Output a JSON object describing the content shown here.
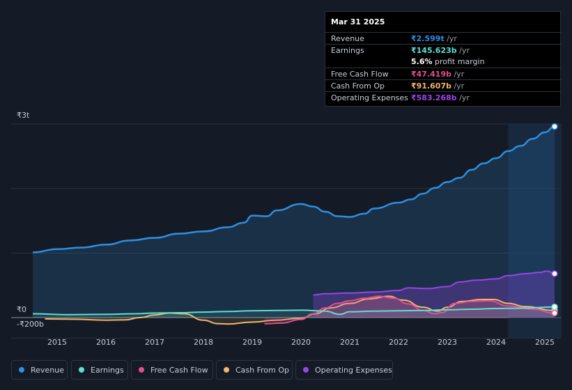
{
  "chart_data": {
    "type": "area",
    "y_axis_labels": [
      "₹3t",
      "₹0",
      "-₹200b"
    ],
    "ylim": [
      -200,
      3000
    ],
    "xlim": [
      2014.5,
      2025.3
    ],
    "x_ticks": [
      "2015",
      "2016",
      "2017",
      "2018",
      "2019",
      "2020",
      "2021",
      "2022",
      "2023",
      "2024",
      "2025"
    ],
    "series": [
      {
        "name": "Revenue",
        "color": "#2e8fe0",
        "points": [
          [
            2014.5,
            1010
          ],
          [
            2015,
            1060
          ],
          [
            2015.5,
            1085
          ],
          [
            2016,
            1130
          ],
          [
            2016.5,
            1195
          ],
          [
            2017,
            1235
          ],
          [
            2017.5,
            1300
          ],
          [
            2018,
            1335
          ],
          [
            2018.5,
            1400
          ],
          [
            2018.83,
            1470
          ],
          [
            2019,
            1580
          ],
          [
            2019.3,
            1570
          ],
          [
            2019.5,
            1660
          ],
          [
            2020,
            1760
          ],
          [
            2020.25,
            1720
          ],
          [
            2020.5,
            1640
          ],
          [
            2020.75,
            1570
          ],
          [
            2021,
            1560
          ],
          [
            2021.3,
            1610
          ],
          [
            2021.5,
            1690
          ],
          [
            2022,
            1780
          ],
          [
            2022.25,
            1830
          ],
          [
            2022.5,
            1920
          ],
          [
            2022.75,
            2010
          ],
          [
            2023,
            2100
          ],
          [
            2023.25,
            2165
          ],
          [
            2023.5,
            2290
          ],
          [
            2023.75,
            2390
          ],
          [
            2024,
            2470
          ],
          [
            2024.25,
            2580
          ],
          [
            2024.5,
            2660
          ],
          [
            2024.75,
            2770
          ],
          [
            2025,
            2870
          ],
          [
            2025.2,
            2960
          ]
        ]
      },
      {
        "name": "Earnings",
        "color": "#5fe0cf",
        "points": [
          [
            2014.5,
            60
          ],
          [
            2015.2,
            45
          ],
          [
            2016,
            50
          ],
          [
            2016.6,
            60
          ],
          [
            2017,
            70
          ],
          [
            2017.5,
            75
          ],
          [
            2018,
            85
          ],
          [
            2018.5,
            95
          ],
          [
            2019,
            105
          ],
          [
            2019.5,
            110
          ],
          [
            2020,
            115
          ],
          [
            2020.5,
            100
          ],
          [
            2020.8,
            50
          ],
          [
            2021,
            90
          ],
          [
            2021.5,
            100
          ],
          [
            2022,
            105
          ],
          [
            2022.5,
            110
          ],
          [
            2023,
            120
          ],
          [
            2023.5,
            130
          ],
          [
            2024,
            140
          ],
          [
            2024.5,
            145
          ],
          [
            2025.2,
            165
          ]
        ]
      },
      {
        "name": "Free Cash Flow",
        "color": "#e04f8e",
        "points": [
          [
            2019.25,
            -95
          ],
          [
            2019.6,
            -85
          ],
          [
            2020,
            -30
          ],
          [
            2020.25,
            60
          ],
          [
            2020.5,
            150
          ],
          [
            2020.75,
            220
          ],
          [
            2021,
            260
          ],
          [
            2021.3,
            300
          ],
          [
            2021.6,
            330
          ],
          [
            2021.9,
            300
          ],
          [
            2022.2,
            210
          ],
          [
            2022.5,
            110
          ],
          [
            2022.75,
            60
          ],
          [
            2022.9,
            80
          ],
          [
            2023.15,
            220
          ],
          [
            2023.5,
            250
          ],
          [
            2023.85,
            260
          ],
          [
            2024.25,
            180
          ],
          [
            2024.75,
            130
          ],
          [
            2025.2,
            70
          ]
        ]
      },
      {
        "name": "Cash From Op",
        "color": "#f0b66b",
        "points": [
          [
            2014.75,
            -20
          ],
          [
            2015.3,
            -25
          ],
          [
            2016,
            -40
          ],
          [
            2016.4,
            -35
          ],
          [
            2016.7,
            0
          ],
          [
            2017,
            40
          ],
          [
            2017.3,
            70
          ],
          [
            2017.6,
            60
          ],
          [
            2018,
            -40
          ],
          [
            2018.3,
            -95
          ],
          [
            2018.5,
            -100
          ],
          [
            2019,
            -70
          ],
          [
            2019.5,
            -40
          ],
          [
            2020,
            -10
          ],
          [
            2020.3,
            60
          ],
          [
            2020.6,
            150
          ],
          [
            2021,
            220
          ],
          [
            2021.4,
            290
          ],
          [
            2021.8,
            330
          ],
          [
            2022.1,
            270
          ],
          [
            2022.5,
            160
          ],
          [
            2022.8,
            100
          ],
          [
            2023,
            160
          ],
          [
            2023.3,
            250
          ],
          [
            2023.7,
            280
          ],
          [
            2023.95,
            280
          ],
          [
            2024.25,
            220
          ],
          [
            2024.6,
            170
          ],
          [
            2025.2,
            110
          ]
        ]
      },
      {
        "name": "Operating Expenses",
        "color": "#9a44e8",
        "points": [
          [
            2020.25,
            350
          ],
          [
            2020.5,
            370
          ],
          [
            2021,
            380
          ],
          [
            2021.5,
            395
          ],
          [
            2022,
            420
          ],
          [
            2022.2,
            460
          ],
          [
            2022.6,
            450
          ],
          [
            2023,
            480
          ],
          [
            2023.25,
            550
          ],
          [
            2023.6,
            580
          ],
          [
            2024,
            600
          ],
          [
            2024.25,
            650
          ],
          [
            2024.6,
            680
          ],
          [
            2024.9,
            700
          ],
          [
            2025.05,
            720
          ],
          [
            2025.2,
            680
          ]
        ]
      }
    ]
  },
  "tooltip": {
    "date": "Mar 31 2025",
    "rows": [
      {
        "label": "Revenue",
        "value": "₹2.599t",
        "unit": "/yr",
        "color": "#2e8fe0"
      },
      {
        "label": "Earnings",
        "value": "₹145.623b",
        "unit": "/yr",
        "color": "#5fe0cf"
      },
      {
        "label": "",
        "value": "5.6%",
        "unit": "profit margin",
        "color": "#ffffff"
      },
      {
        "label": "Free Cash Flow",
        "value": "₹47.419b",
        "unit": "/yr",
        "color": "#e04f8e"
      },
      {
        "label": "Cash From Op",
        "value": "₹91.607b",
        "unit": "/yr",
        "color": "#f0b66b"
      },
      {
        "label": "Operating Expenses",
        "value": "₹583.268b",
        "unit": "/yr",
        "color": "#9a44e8"
      }
    ]
  },
  "legend": [
    {
      "label": "Revenue",
      "color": "#2e8fe0"
    },
    {
      "label": "Earnings",
      "color": "#5fe0cf"
    },
    {
      "label": "Free Cash Flow",
      "color": "#e04f8e"
    },
    {
      "label": "Cash From Op",
      "color": "#f0b66b"
    },
    {
      "label": "Operating Expenses",
      "color": "#9a44e8"
    }
  ]
}
